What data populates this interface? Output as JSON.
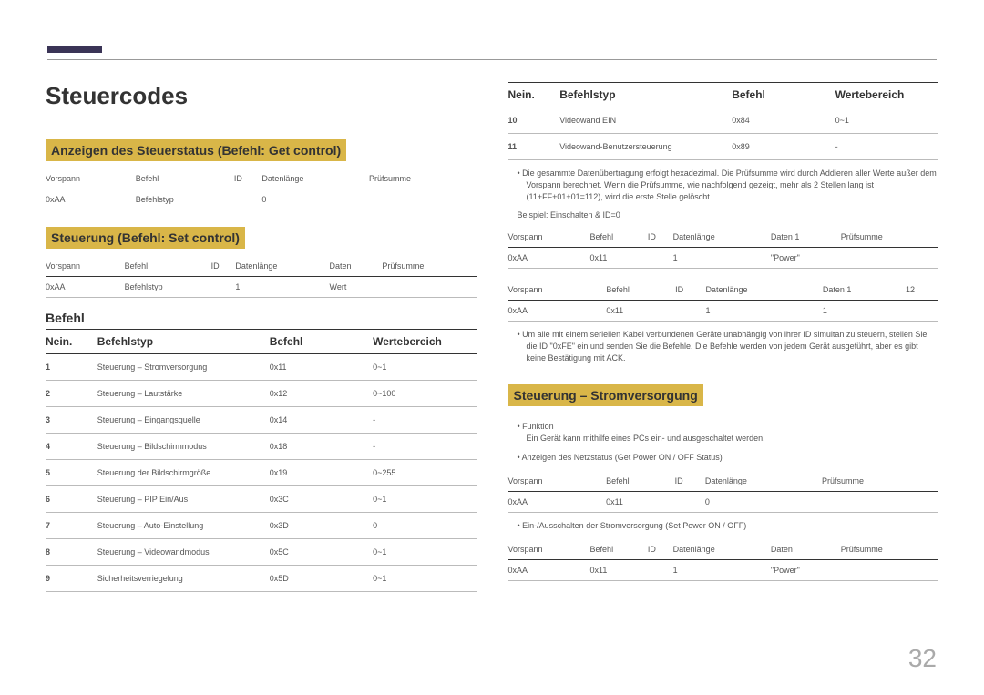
{
  "page": {
    "number": "32",
    "title": "Steuercodes"
  },
  "colors": {
    "accent_bar": "#3a3456",
    "highlight": "#d9b648",
    "text": "#333333",
    "muted": "#555555",
    "rule": "#999999"
  },
  "left": {
    "section1": {
      "heading": "Anzeigen des Steuerstatus (Befehl: Get control)",
      "table": {
        "headers": [
          "Vorspann",
          "Befehl",
          "ID",
          "Datenlänge",
          "Prüfsumme"
        ],
        "row": [
          "0xAA",
          "Befehlstyp",
          "",
          "0",
          ""
        ]
      }
    },
    "section2": {
      "heading": "Steuerung (Befehl: Set control)",
      "table": {
        "headers": [
          "Vorspann",
          "Befehl",
          "ID",
          "Datenlänge",
          "Daten",
          "Prüfsumme"
        ],
        "row": [
          "0xAA",
          "Befehlstyp",
          "",
          "1",
          "Wert",
          ""
        ]
      }
    },
    "section3": {
      "heading": "Befehl",
      "cmd_headers": [
        "Nein.",
        "Befehlstyp",
        "Befehl",
        "Wertebereich"
      ],
      "rows": [
        [
          "1",
          "Steuerung – Stromversorgung",
          "0x11",
          "0~1"
        ],
        [
          "2",
          "Steuerung – Lautstärke",
          "0x12",
          "0~100"
        ],
        [
          "3",
          "Steuerung – Eingangsquelle",
          "0x14",
          "-"
        ],
        [
          "4",
          "Steuerung – Bildschirmmodus",
          "0x18",
          "-"
        ],
        [
          "5",
          "Steuerung der Bildschirmgröße",
          "0x19",
          "0~255"
        ],
        [
          "6",
          "Steuerung – PIP Ein/Aus",
          "0x3C",
          "0~1"
        ],
        [
          "7",
          "Steuerung – Auto-Einstellung",
          "0x3D",
          "0"
        ],
        [
          "8",
          "Steuerung – Videowandmodus",
          "0x5C",
          "0~1"
        ],
        [
          "9",
          "Sicherheitsverriegelung",
          "0x5D",
          "0~1"
        ]
      ]
    }
  },
  "right": {
    "cmd_headers": [
      "Nein.",
      "Befehlstyp",
      "Befehl",
      "Wertebereich"
    ],
    "cmd_rows": [
      [
        "10",
        "Videowand EIN",
        "0x84",
        "0~1"
      ],
      [
        "11",
        "Videowand-Benutzersteuerung",
        "0x89",
        "-"
      ]
    ],
    "bullet1": "Die gesammte Datenübertragung erfolgt hexadezimal. Die Prüfsumme wird durch Addieren aller Werte außer dem Vorspann berechnet. Wenn die Prüfsumme, wie nachfolgend gezeigt, mehr als 2 Stellen lang ist (11+FF+01+01=112), wird die erste Stelle gelöscht.",
    "example_label": "Beispiel: Einschalten & ID=0",
    "ex1": {
      "headers": [
        "Vorspann",
        "Befehl",
        "ID",
        "Datenlänge",
        "Daten 1",
        "Prüfsumme"
      ],
      "row": [
        "0xAA",
        "0x11",
        "",
        "1",
        "\"Power\"",
        ""
      ]
    },
    "ex2": {
      "headers": [
        "Vorspann",
        "Befehl",
        "ID",
        "Datenlänge",
        "Daten 1",
        "12"
      ],
      "row": [
        "0xAA",
        "0x11",
        "",
        "1",
        "1",
        ""
      ]
    },
    "bullet2": "Um alle mit einem seriellen Kabel verbundenen Geräte unabhängig von ihrer ID simultan zu steuern, stellen Sie die ID \"0xFE\" ein und senden Sie die Befehle. Die Befehle werden von jedem Gerät ausgeführt, aber es gibt keine Bestätigung mit ACK.",
    "power_section": {
      "heading": "Steuerung – Stromversorgung",
      "func_label": "Funktion",
      "func_desc": "Ein Gerät kann mithilfe eines PCs ein- und ausgeschaltet werden.",
      "get_label": "Anzeigen des Netzstatus (Get Power ON / OFF Status)",
      "get_table": {
        "headers": [
          "Vorspann",
          "Befehl",
          "ID",
          "Datenlänge",
          "Prüfsumme"
        ],
        "row": [
          "0xAA",
          "0x11",
          "",
          "0",
          ""
        ]
      },
      "set_label": "Ein-/Ausschalten der Stromversorgung (Set Power ON / OFF)",
      "set_table": {
        "headers": [
          "Vorspann",
          "Befehl",
          "ID",
          "Datenlänge",
          "Daten",
          "Prüfsumme"
        ],
        "row": [
          "0xAA",
          "0x11",
          "",
          "1",
          "\"Power\"",
          ""
        ]
      }
    }
  }
}
